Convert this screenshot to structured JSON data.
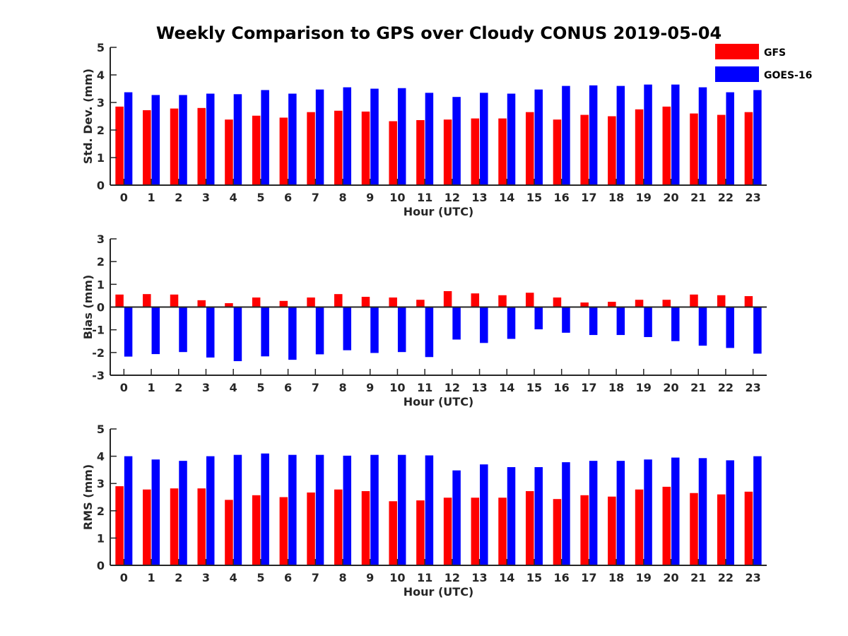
{
  "title": "Weekly Comparison to GPS over Cloudy CONUS 2019-05-04",
  "colors": {
    "GFS": "#ff0000",
    "GOES-16": "#0000ff",
    "axis": "#262626"
  },
  "legend": {
    "placement": "top-right",
    "entries": [
      "GFS",
      "GOES-16"
    ]
  },
  "chart_data": [
    {
      "type": "bar",
      "xlabel": "Hour (UTC)",
      "ylabel": "Std. Dev. (mm)",
      "ylim": [
        0,
        5
      ],
      "yticks": [
        0,
        1,
        2,
        3,
        4,
        5
      ],
      "categories": [
        "0",
        "1",
        "2",
        "3",
        "4",
        "5",
        "6",
        "7",
        "8",
        "9",
        "10",
        "11",
        "12",
        "13",
        "14",
        "15",
        "16",
        "17",
        "18",
        "19",
        "20",
        "21",
        "22",
        "23"
      ],
      "series": [
        {
          "name": "GFS",
          "color": "#ff0000",
          "values": [
            2.85,
            2.72,
            2.78,
            2.8,
            2.38,
            2.52,
            2.45,
            2.65,
            2.7,
            2.67,
            2.32,
            2.36,
            2.38,
            2.42,
            2.42,
            2.65,
            2.38,
            2.55,
            2.5,
            2.75,
            2.85,
            2.6,
            2.55,
            2.65
          ]
        },
        {
          "name": "GOES-16",
          "color": "#0000ff",
          "values": [
            3.37,
            3.27,
            3.27,
            3.32,
            3.3,
            3.45,
            3.32,
            3.47,
            3.55,
            3.5,
            3.52,
            3.35,
            3.2,
            3.35,
            3.32,
            3.47,
            3.6,
            3.62,
            3.6,
            3.65,
            3.65,
            3.55,
            3.37,
            3.45
          ]
        }
      ]
    },
    {
      "type": "bar",
      "xlabel": "Hour (UTC)",
      "ylabel": "Bias (mm)",
      "ylim": [
        -3,
        3
      ],
      "yticks": [
        -3,
        -2,
        -1,
        0,
        1,
        2,
        3
      ],
      "categories": [
        "0",
        "1",
        "2",
        "3",
        "4",
        "5",
        "6",
        "7",
        "8",
        "9",
        "10",
        "11",
        "12",
        "13",
        "14",
        "15",
        "16",
        "17",
        "18",
        "19",
        "20",
        "21",
        "22",
        "23"
      ],
      "series": [
        {
          "name": "GFS",
          "color": "#ff0000",
          "values": [
            0.55,
            0.57,
            0.55,
            0.3,
            0.17,
            0.42,
            0.27,
            0.42,
            0.57,
            0.45,
            0.42,
            0.32,
            0.7,
            0.6,
            0.52,
            0.63,
            0.42,
            0.2,
            0.23,
            0.32,
            0.32,
            0.55,
            0.52,
            0.48
          ]
        },
        {
          "name": "GOES-16",
          "color": "#0000ff",
          "values": [
            -2.18,
            -2.07,
            -1.98,
            -2.22,
            -2.38,
            -2.17,
            -2.32,
            -2.08,
            -1.9,
            -2.02,
            -1.98,
            -2.2,
            -1.43,
            -1.58,
            -1.4,
            -0.98,
            -1.13,
            -1.23,
            -1.23,
            -1.32,
            -1.5,
            -1.7,
            -1.8,
            -2.05
          ]
        }
      ]
    },
    {
      "type": "bar",
      "xlabel": "Hour (UTC)",
      "ylabel": "RMS (mm)",
      "ylim": [
        0,
        5
      ],
      "yticks": [
        0,
        1,
        2,
        3,
        4,
        5
      ],
      "categories": [
        "0",
        "1",
        "2",
        "3",
        "4",
        "5",
        "6",
        "7",
        "8",
        "9",
        "10",
        "11",
        "12",
        "13",
        "14",
        "15",
        "16",
        "17",
        "18",
        "19",
        "20",
        "21",
        "22",
        "23"
      ],
      "series": [
        {
          "name": "GFS",
          "color": "#ff0000",
          "values": [
            2.9,
            2.78,
            2.82,
            2.82,
            2.4,
            2.57,
            2.5,
            2.67,
            2.78,
            2.72,
            2.35,
            2.38,
            2.48,
            2.48,
            2.48,
            2.72,
            2.43,
            2.57,
            2.52,
            2.78,
            2.88,
            2.65,
            2.6,
            2.7
          ]
        },
        {
          "name": "GOES-16",
          "color": "#0000ff",
          "values": [
            4.0,
            3.88,
            3.83,
            4.0,
            4.05,
            4.1,
            4.05,
            4.05,
            4.02,
            4.05,
            4.05,
            4.03,
            3.48,
            3.7,
            3.6,
            3.6,
            3.78,
            3.83,
            3.83,
            3.88,
            3.95,
            3.93,
            3.85,
            4.0
          ]
        }
      ]
    }
  ]
}
